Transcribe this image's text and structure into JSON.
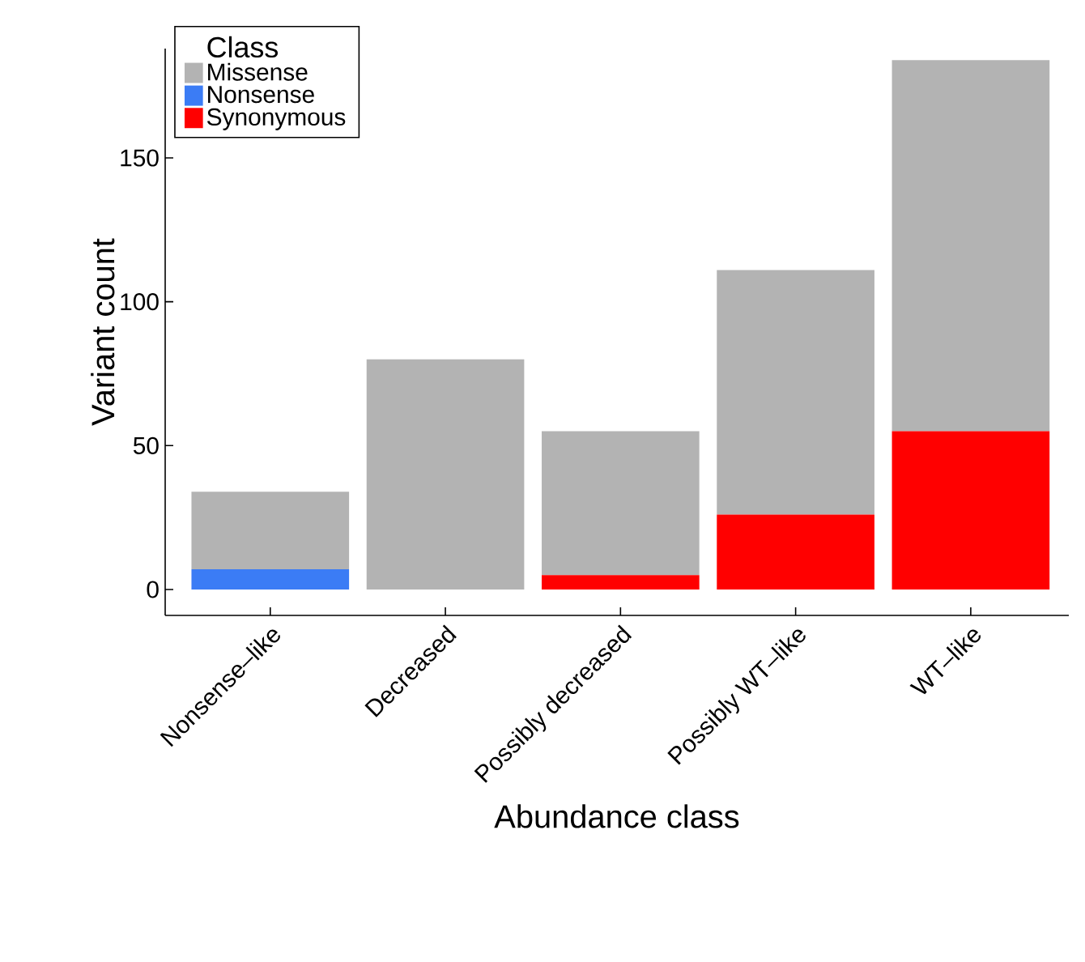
{
  "chart_data": {
    "type": "bar",
    "stacked": true,
    "xlabel": "Abundance class",
    "ylabel": "Variant count",
    "legend_title": "Class",
    "categories": [
      "Nonsense–like",
      "Decreased",
      "Possibly decreased",
      "Possibly WT–like",
      "WT–like"
    ],
    "series": [
      {
        "name": "Synonymous",
        "color": "#ff0000",
        "values": [
          0,
          0,
          5,
          26,
          55
        ]
      },
      {
        "name": "Nonsense",
        "color": "#3b7cf5",
        "values": [
          7,
          0,
          0,
          0,
          0
        ]
      },
      {
        "name": "Missense",
        "color": "#b3b3b3",
        "values": [
          27,
          80,
          50,
          85,
          129
        ]
      }
    ],
    "ylim": [
      -9,
      188
    ],
    "yticks": [
      0,
      50,
      100,
      150
    ],
    "grid": false,
    "legend": "top left"
  }
}
